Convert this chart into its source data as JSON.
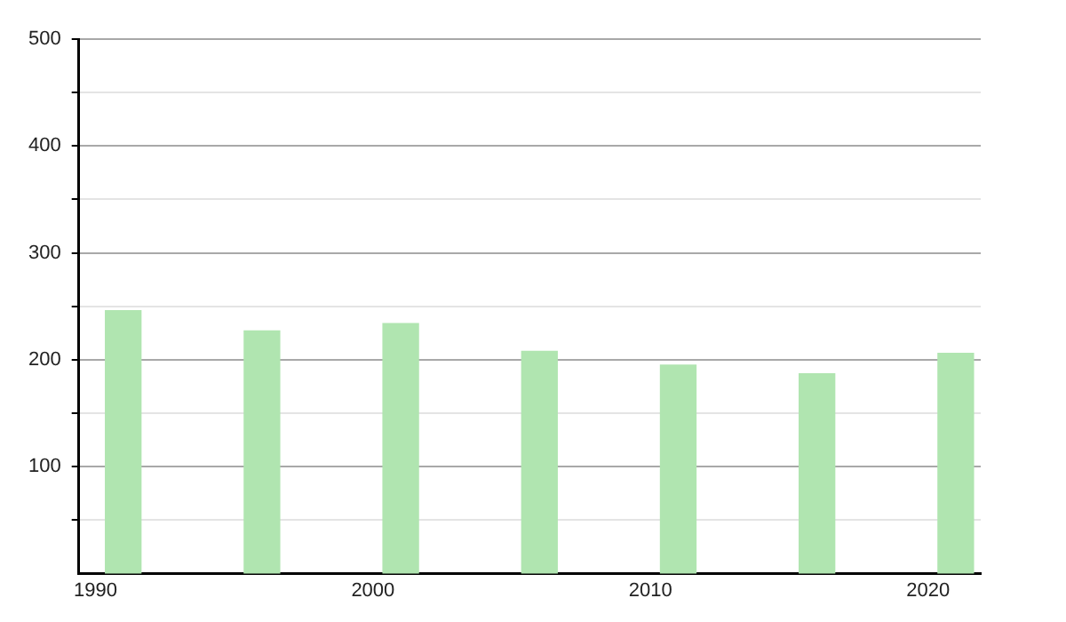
{
  "chart_data": {
    "type": "bar",
    "x": [
      1991,
      1996,
      2001,
      2006,
      2011,
      2016,
      2021
    ],
    "values": [
      246,
      227,
      234,
      208,
      195,
      187,
      206
    ],
    "color": "#b0e5b0",
    "xlim": [
      1989.4,
      2021.9
    ],
    "xticks": [
      1990,
      2000,
      2010,
      2020
    ],
    "ylim": [
      0,
      500
    ],
    "yticks": [
      {
        "value": 50,
        "label": null
      },
      100,
      {
        "value": 150,
        "label": null
      },
      200,
      {
        "value": 250,
        "label": null
      },
      300,
      {
        "value": 350,
        "label": null
      },
      400,
      {
        "value": 450,
        "label": null
      },
      500
    ],
    "grid": "y"
  }
}
